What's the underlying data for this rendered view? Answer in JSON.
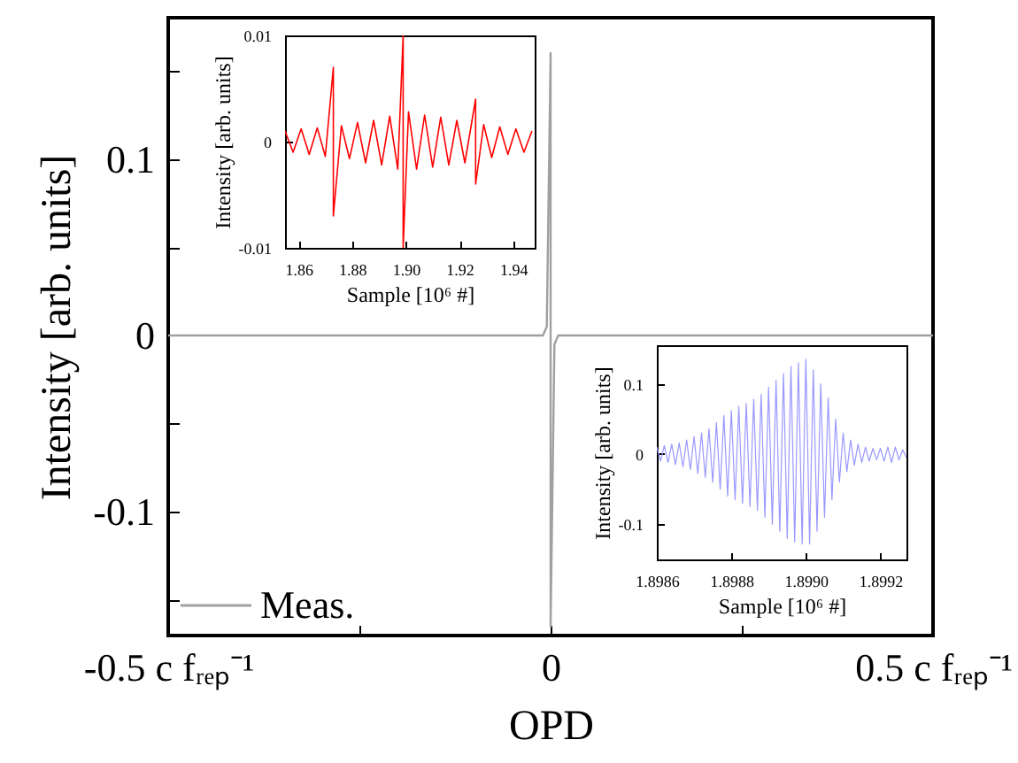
{
  "chart_data": [
    {
      "type": "line",
      "xlabel": "OPD",
      "ylabel": "Intensity [arb. units]",
      "x": [
        -0.5,
        -0.01,
        -0.005,
        0,
        0,
        0.005,
        0.01,
        0.5
      ],
      "series": [
        {
          "name": "Meas.",
          "color": "#a0a0a0",
          "values": [
            0,
            0,
            0.005,
            0.16,
            -0.165,
            -0.005,
            0,
            0
          ]
        }
      ],
      "xlim": [
        -0.5,
        0.5
      ],
      "ylim": [
        -0.17,
        0.18
      ],
      "xticks": [
        {
          "value": -0.5,
          "label": "-0.5 c fᵣₑₚ⁻¹"
        },
        {
          "value": -0.25,
          "label": null
        },
        0,
        {
          "value": 0.25,
          "label": null
        },
        {
          "value": 0.5,
          "label": "0.5 c fᵣₑₚ⁻¹"
        }
      ],
      "yticks": [
        {
          "value": -0.15,
          "label": null
        },
        -0.1,
        {
          "value": -0.05,
          "label": null
        },
        0,
        {
          "value": 0.05,
          "label": null
        },
        0.1,
        {
          "value": 0.15,
          "label": null
        }
      ],
      "legend": "bottom left"
    },
    {
      "type": "line",
      "xlabel": "Sample [10⁶ #]",
      "ylabel": "Intensity [arb. units]",
      "x": [
        1.855,
        1.858,
        1.861,
        1.864,
        1.867,
        1.87,
        1.873,
        1.873,
        1.876,
        1.879,
        1.882,
        1.885,
        1.888,
        1.891,
        1.894,
        1.897,
        1.899,
        1.899,
        1.901,
        1.904,
        1.907,
        1.91,
        1.913,
        1.916,
        1.919,
        1.922,
        1.926,
        1.926,
        1.929,
        1.932,
        1.935,
        1.938,
        1.941,
        1.944,
        1.947
      ],
      "series": [
        {
          "color": "#ff0000",
          "values": [
            0.001,
            -0.001,
            0.0012,
            -0.0012,
            0.0013,
            -0.0014,
            0.007,
            -0.007,
            0.0015,
            -0.0016,
            0.0018,
            -0.002,
            0.002,
            -0.0022,
            0.0024,
            -0.0026,
            0.01,
            -0.01,
            0.0028,
            -0.0026,
            0.0025,
            -0.0024,
            0.0023,
            -0.0022,
            0.002,
            -0.002,
            0.004,
            -0.004,
            0.0016,
            -0.0015,
            0.0014,
            -0.0012,
            0.0012,
            -0.001,
            0.001
          ]
        }
      ],
      "xlim": [
        1.855,
        1.948
      ],
      "ylim": [
        -0.01,
        0.01
      ],
      "xticks": [
        1.86,
        1.88,
        {
          "value": 1.9,
          "label": "1.90"
        },
        1.92,
        1.94
      ],
      "yticks": [
        -0.01,
        0,
        0.01
      ]
    },
    {
      "type": "line",
      "xlabel": "Sample [10⁶ #]",
      "ylabel": "Intensity [arb. units]",
      "x": [
        1.8986,
        1.89861,
        1.89862,
        1.89863,
        1.89864,
        1.89865,
        1.89866,
        1.89867,
        1.89868,
        1.89869,
        1.8987,
        1.89871,
        1.89872,
        1.89873,
        1.89874,
        1.89875,
        1.89876,
        1.89877,
        1.89878,
        1.89879,
        1.8988,
        1.89881,
        1.89882,
        1.89883,
        1.89884,
        1.89885,
        1.89886,
        1.89887,
        1.89888,
        1.89889,
        1.8989,
        1.89891,
        1.89892,
        1.89893,
        1.89894,
        1.89895,
        1.89896,
        1.89897,
        1.89898,
        1.89899,
        1.899,
        1.89901,
        1.89902,
        1.89903,
        1.89904,
        1.89905,
        1.89906,
        1.89907,
        1.89908,
        1.89909,
        1.8991,
        1.89911,
        1.89912,
        1.89913,
        1.89914,
        1.89915,
        1.89916,
        1.89917,
        1.89918,
        1.89919,
        1.8992,
        1.89921,
        1.89922,
        1.89923,
        1.89924,
        1.89925,
        1.89926,
        1.89927
      ],
      "series": [
        {
          "color": "#9999ff",
          "values": [
            0.01,
            -0.01,
            0.012,
            -0.012,
            0.014,
            -0.015,
            0.016,
            -0.018,
            0.02,
            -0.022,
            0.025,
            -0.028,
            0.03,
            -0.033,
            0.036,
            -0.04,
            0.045,
            -0.05,
            0.055,
            -0.06,
            0.062,
            -0.065,
            0.068,
            -0.07,
            0.072,
            -0.075,
            0.078,
            -0.08,
            0.085,
            -0.09,
            0.095,
            -0.1,
            0.105,
            -0.11,
            0.115,
            -0.12,
            0.125,
            -0.125,
            0.13,
            -0.128,
            0.135,
            -0.128,
            0.12,
            -0.11,
            0.1,
            -0.09,
            0.08,
            -0.065,
            0.05,
            -0.04,
            0.03,
            -0.025,
            0.02,
            -0.016,
            0.014,
            -0.012,
            0.01,
            -0.01,
            0.008,
            -0.008,
            0.008,
            -0.01,
            0.01,
            -0.012,
            0.01,
            -0.008,
            0.006,
            -0.005
          ]
        }
      ],
      "xlim": [
        1.8986,
        1.89927
      ],
      "ylim": [
        -0.15,
        0.155
      ],
      "xticks": [
        1.8986,
        1.8988,
        {
          "value": 1.899,
          "label": "1.8990"
        },
        1.8992
      ],
      "yticks": [
        -0.1,
        0,
        0.1
      ]
    }
  ]
}
